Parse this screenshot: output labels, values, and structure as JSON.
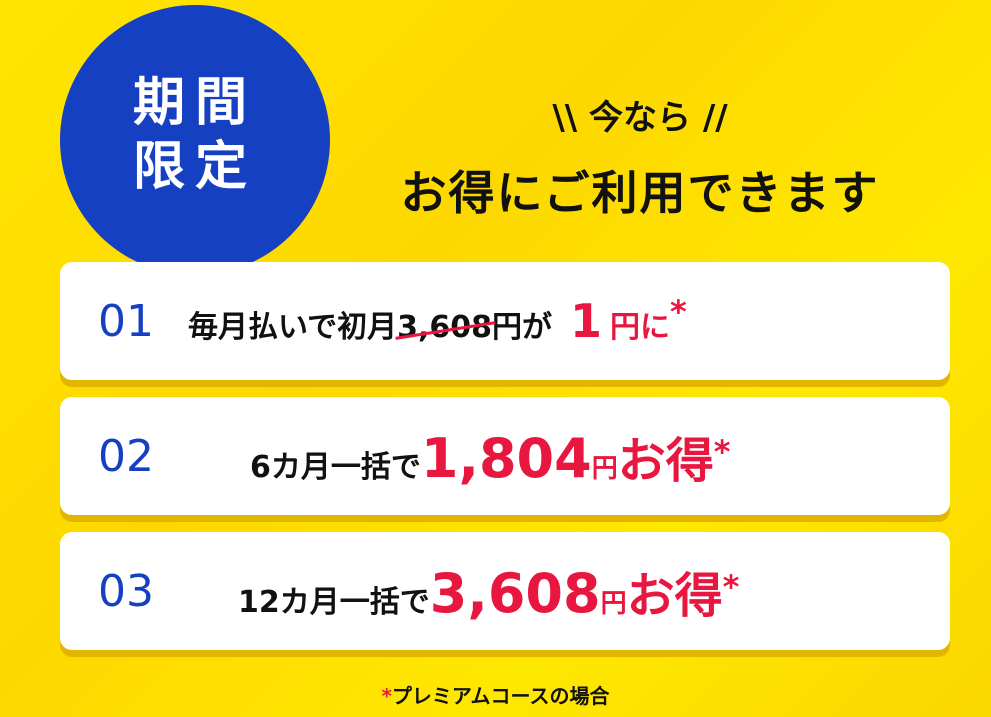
{
  "badge": {
    "line1": "期間",
    "line2": "限定"
  },
  "headline": {
    "line1": "\\\\ 今なら //",
    "line2": "お得にご利用できます"
  },
  "offers": [
    {
      "number": "01",
      "prefix": "毎月払いで初月",
      "old_price": "3,608",
      "old_unit": "円が",
      "price": "1",
      "unit": "円に",
      "mark": "*"
    },
    {
      "number": "02",
      "prefix": "6カ月一括で",
      "price": "1,804",
      "unit": "円",
      "suffix": "お得",
      "mark": "*"
    },
    {
      "number": "03",
      "prefix": "12カ月一括で",
      "price": "3,608",
      "unit": "円",
      "suffix": "お得",
      "mark": "*"
    }
  ],
  "note": {
    "mark": "*",
    "text": "プレミアムコースの場合"
  },
  "colors": {
    "background": "#ffe500",
    "badge": "#1640c2",
    "accent": "#e8173f"
  }
}
